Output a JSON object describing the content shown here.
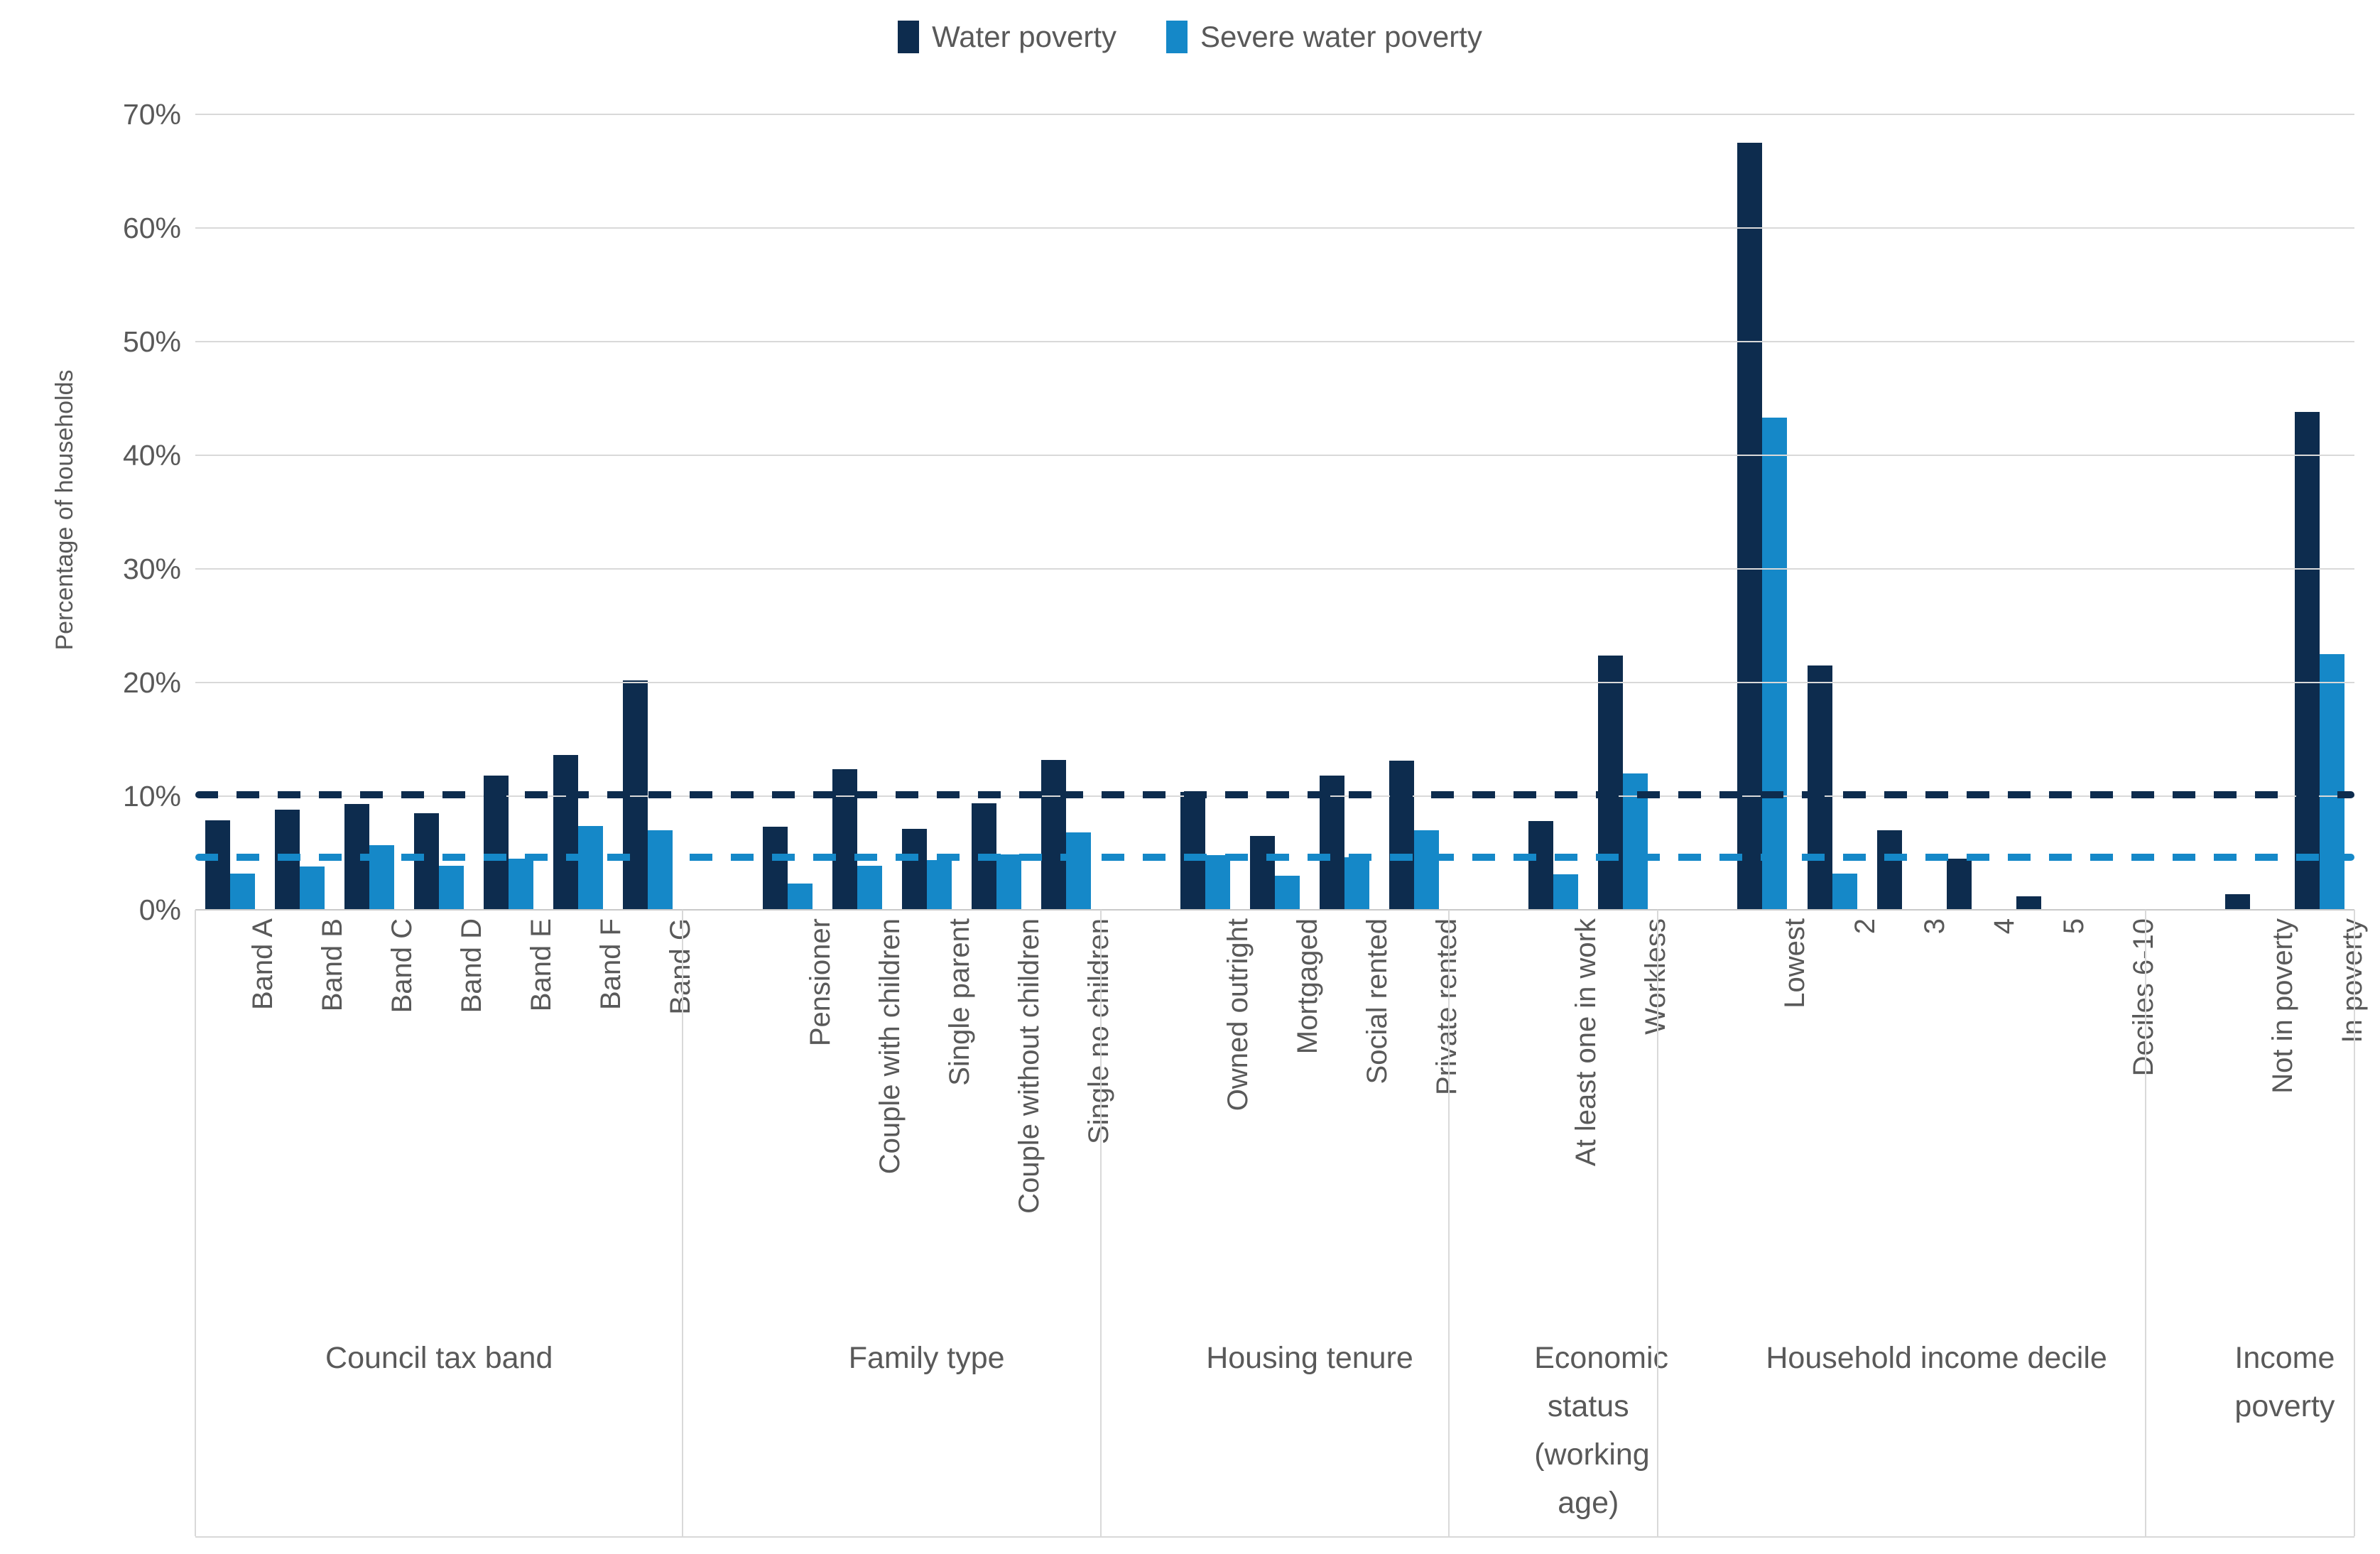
{
  "legend": {
    "items": [
      {
        "label": "Water poverty",
        "color": "#0d2c4e"
      },
      {
        "label": "Severe water poverty",
        "color": "#1588c8"
      }
    ]
  },
  "y_axis": {
    "title": "Percentage of households",
    "tick_labels": [
      "70%",
      "60%",
      "50%",
      "40%",
      "30%",
      "20%",
      "10%",
      "0%"
    ],
    "max": 70,
    "min": 0,
    "step": 10
  },
  "colors": {
    "water_poverty": "#0d2c4e",
    "severe_water_poverty": "#1588c8",
    "gridline": "#d9d9d9",
    "text": "#595959"
  },
  "reference_lines": [
    {
      "name": "water-poverty-average",
      "value": 10.1,
      "color": "#0d2c4e"
    },
    {
      "name": "severe-water-poverty-average",
      "value": 4.6,
      "color": "#1588c8"
    }
  ],
  "chart_data": {
    "type": "bar",
    "title": "",
    "xlabel": "",
    "ylabel": "Percentage of households",
    "ylim": [
      0,
      70
    ],
    "grid": true,
    "legend_position": "top-center",
    "series_names": [
      "Water poverty",
      "Severe water poverty"
    ],
    "groups": [
      {
        "label": "Council tax band",
        "categories": [
          "Band A",
          "Band B",
          "Band C",
          "Band D",
          "Band E",
          "Band F",
          "Band G"
        ],
        "series": [
          {
            "name": "Water poverty",
            "values": [
              7.9,
              8.8,
              9.3,
              8.5,
              11.8,
              13.6,
              20.2
            ]
          },
          {
            "name": "Severe water poverty",
            "values": [
              3.2,
              3.8,
              5.7,
              3.9,
              4.5,
              7.4,
              7.0
            ]
          }
        ]
      },
      {
        "label": "Family type",
        "categories": [
          "Pensioner",
          "Couple with children",
          "Single parent",
          "Couple without children",
          "Single no children"
        ],
        "series": [
          {
            "name": "Water poverty",
            "values": [
              7.3,
              12.4,
              7.1,
              9.4,
              13.2
            ]
          },
          {
            "name": "Severe water poverty",
            "values": [
              2.3,
              3.9,
              4.4,
              4.9,
              6.8
            ]
          }
        ]
      },
      {
        "label": "Housing tenure",
        "categories": [
          "Owned outright",
          "Mortgaged",
          "Social rented",
          "Private rented"
        ],
        "series": [
          {
            "name": "Water poverty",
            "values": [
              10.4,
              6.5,
              11.8,
              13.1
            ]
          },
          {
            "name": "Severe water poverty",
            "values": [
              4.8,
              3.0,
              4.6,
              7.0
            ]
          }
        ]
      },
      {
        "label": "Economic status (working age)",
        "categories": [
          "At least one in work",
          "Workless"
        ],
        "series": [
          {
            "name": "Water poverty",
            "values": [
              7.8,
              22.4
            ]
          },
          {
            "name": "Severe water poverty",
            "values": [
              3.1,
              12.0
            ]
          }
        ]
      },
      {
        "label": "Household income decile",
        "categories": [
          "Lowest",
          "2",
          "3",
          "4",
          "5",
          "Deciles 6-10"
        ],
        "series": [
          {
            "name": "Water poverty",
            "values": [
              67.5,
              21.5,
              7.0,
              4.5,
              1.2,
              0
            ]
          },
          {
            "name": "Severe water poverty",
            "values": [
              43.3,
              3.2,
              0,
              0,
              0,
              0
            ]
          }
        ]
      },
      {
        "label": "Income poverty",
        "categories": [
          "Not in poverty",
          "In poverty"
        ],
        "series": [
          {
            "name": "Water poverty",
            "values": [
              1.4,
              43.8
            ]
          },
          {
            "name": "Severe water poverty",
            "values": [
              0,
              22.5
            ]
          }
        ]
      }
    ]
  }
}
